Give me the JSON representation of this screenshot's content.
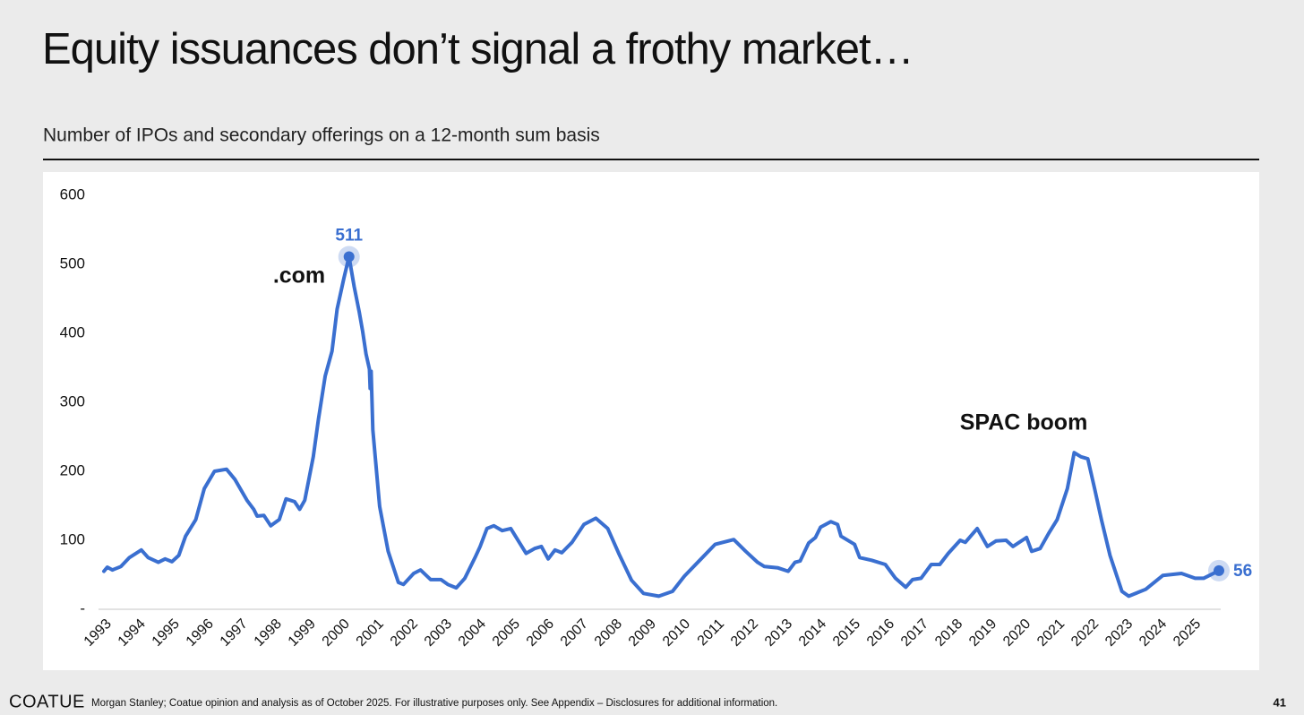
{
  "slide": {
    "logo": "COATUE",
    "source": "Morgan Stanley; Coatue opinion and analysis as of October 2025. For illustrative purposes only.  See Appendix – Disclosures for additional information.",
    "page_number": "41"
  },
  "chart_data": {
    "type": "line",
    "title": "Equity issuances don’t signal a frothy market…",
    "subtitle": "Number of IPOs and secondary offerings on a 12-month sum basis",
    "color": "#3a6fd0",
    "x": [
      1993.0,
      1993.1,
      1993.25,
      1993.5,
      1993.75,
      1994.1,
      1994.3,
      1994.6,
      1994.8,
      1995.0,
      1995.2,
      1995.4,
      1995.7,
      1995.95,
      1996.25,
      1996.6,
      1996.85,
      1997.2,
      1997.4,
      1997.5,
      1997.7,
      1997.9,
      1998.15,
      1998.35,
      1998.6,
      1998.75,
      1998.9,
      1999.15,
      1999.3,
      1999.5,
      1999.7,
      1999.85,
      2000.05,
      2000.2,
      2000.35,
      2000.5,
      2000.6,
      2000.7,
      2000.8,
      2000.82,
      2000.85,
      2000.9,
      2001.1,
      2001.35,
      2001.65,
      2001.8,
      2002.1,
      2002.3,
      2002.6,
      2002.9,
      2003.1,
      2003.35,
      2003.6,
      2003.9,
      2004.05,
      2004.25,
      2004.45,
      2004.7,
      2004.95,
      2005.2,
      2005.4,
      2005.65,
      2005.85,
      2006.05,
      2006.25,
      2006.45,
      2006.75,
      2007.1,
      2007.45,
      2007.8,
      2008.15,
      2008.5,
      2008.85,
      2009.3,
      2009.7,
      2010.05,
      2010.5,
      2010.95,
      2011.5,
      2011.85,
      2012.2,
      2012.4,
      2012.8,
      2013.1,
      2013.3,
      2013.45,
      2013.7,
      2013.9,
      2014.05,
      2014.35,
      2014.55,
      2014.65,
      2015.05,
      2015.2,
      2015.55,
      2015.95,
      2016.25,
      2016.55,
      2016.75,
      2017.0,
      2017.3,
      2017.55,
      2017.8,
      2018.15,
      2018.3,
      2018.65,
      2018.95,
      2019.2,
      2019.5,
      2019.7,
      2020.1,
      2020.25,
      2020.5,
      2020.75,
      2021.0,
      2021.3,
      2021.5,
      2021.7,
      2021.9,
      2022.1,
      2022.3,
      2022.55,
      2022.9,
      2023.1,
      2023.6,
      2024.1,
      2024.65,
      2025.05,
      2025.3,
      2025.75
    ],
    "values": [
      55,
      61,
      57,
      62,
      75,
      86,
      75,
      68,
      73,
      69,
      78,
      106,
      130,
      175,
      200,
      203,
      188,
      158,
      145,
      135,
      136,
      121,
      130,
      160,
      156,
      145,
      158,
      221,
      275,
      338,
      374,
      435,
      480,
      511,
      468,
      431,
      403,
      370,
      348,
      320,
      345,
      260,
      149,
      84,
      39,
      36,
      52,
      57,
      43,
      43,
      36,
      31,
      45,
      75,
      91,
      117,
      121,
      114,
      117,
      97,
      81,
      88,
      91,
      73,
      86,
      82,
      97,
      123,
      132,
      117,
      78,
      42,
      23,
      19,
      26,
      48,
      71,
      94,
      101,
      84,
      68,
      62,
      60,
      55,
      68,
      70,
      96,
      104,
      119,
      127,
      123,
      106,
      94,
      75,
      71,
      65,
      45,
      32,
      43,
      45,
      65,
      65,
      81,
      100,
      97,
      117,
      91,
      99,
      100,
      91,
      104,
      84,
      88,
      110,
      130,
      175,
      227,
      221,
      218,
      175,
      130,
      78,
      26,
      19,
      29,
      49,
      52,
      45,
      45,
      56
    ],
    "value_labels": [
      null,
      null,
      null,
      null,
      null,
      null,
      null,
      null,
      null,
      null,
      null,
      null,
      null,
      null,
      null,
      null,
      null,
      null,
      null,
      null,
      null,
      null,
      null,
      null,
      null,
      null,
      null,
      null,
      null,
      null,
      null,
      null,
      null,
      "511",
      null,
      null,
      null,
      null,
      null,
      null,
      null,
      null,
      null,
      null,
      null,
      null,
      null,
      null,
      null,
      null,
      null,
      null,
      null,
      null,
      null,
      null,
      null,
      null,
      null,
      null,
      null,
      null,
      null,
      null,
      null,
      null,
      null,
      null,
      null,
      null,
      null,
      null,
      null,
      null,
      null,
      null,
      null,
      null,
      null,
      null,
      null,
      null,
      null,
      null,
      null,
      null,
      null,
      null,
      null,
      null,
      null,
      null,
      null,
      null,
      null,
      null,
      null,
      null,
      null,
      null,
      null,
      null,
      null,
      null,
      null,
      null,
      null,
      null,
      null,
      null,
      null,
      null,
      null,
      null,
      null,
      null,
      null,
      null,
      null,
      null,
      null,
      null,
      null,
      null,
      null,
      null,
      null,
      null,
      null,
      "56"
    ],
    "annotations": [
      {
        "text": ".com"
      },
      {
        "text": "SPAC boom"
      }
    ],
    "xlim": [
      1993,
      2025.75
    ],
    "xticks": [
      1993,
      1994,
      1995,
      1996,
      1997,
      1998,
      1999,
      2000,
      2001,
      2002,
      2003,
      2004,
      2005,
      2006,
      2007,
      2008,
      2009,
      2010,
      2011,
      2012,
      2013,
      2014,
      2015,
      2016,
      2017,
      2018,
      2019,
      2020,
      2021,
      2022,
      2023,
      2024,
      2025
    ],
    "ylim": [
      0,
      600
    ],
    "yticks": [
      {
        "value": 0,
        "label": "-"
      },
      100,
      200,
      300,
      400,
      500,
      600
    ],
    "grid": false
  }
}
